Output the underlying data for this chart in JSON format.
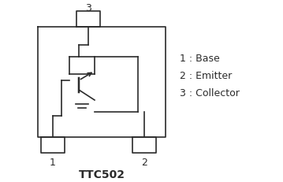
{
  "title": "TTC502",
  "title_fontsize": 10,
  "title_fontweight": "bold",
  "bg_color": "#ffffff",
  "line_color": "#2b2b2b",
  "text_color": "#2b2b2b",
  "legend_items": [
    "1 : Base",
    "2 : Emitter",
    "3 : Collector"
  ],
  "legend_fontsize": 9,
  "fig_width": 3.59,
  "fig_height": 2.32,
  "dpi": 100
}
